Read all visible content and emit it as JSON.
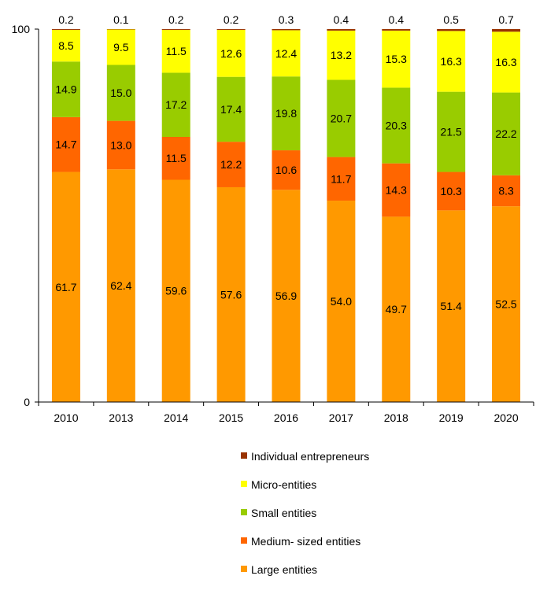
{
  "chart_data": {
    "type": "bar",
    "stacked": true,
    "categories": [
      "2010",
      "2013",
      "2014",
      "2015",
      "2016",
      "2017",
      "2018",
      "2019",
      "2020"
    ],
    "ylim": [
      0,
      100
    ],
    "y_ticks": [
      "0",
      "100"
    ],
    "grid": false,
    "legend_position": "bottom-center",
    "series": [
      {
        "name": "Large entities",
        "color": "#FF9900",
        "values": [
          61.7,
          62.4,
          59.6,
          57.6,
          56.9,
          54.0,
          49.7,
          51.4,
          52.5
        ],
        "labels": [
          "61.7",
          "62.4",
          "59.6",
          "57.6",
          "56.9",
          "54.0",
          "49.7",
          "51.4",
          "52.5"
        ]
      },
      {
        "name": "Medium- sized entities",
        "color": "#FF6600",
        "values": [
          14.7,
          13.0,
          11.5,
          12.2,
          10.6,
          11.7,
          14.3,
          10.3,
          8.3
        ],
        "labels": [
          "14.7",
          "13.0",
          "11.5",
          "12.2",
          "10.6",
          "11.7",
          "14.3",
          "10.3",
          "8.3"
        ]
      },
      {
        "name": "Small entities",
        "color": "#99CC00",
        "values": [
          14.9,
          15.0,
          17.2,
          17.4,
          19.8,
          20.7,
          20.3,
          21.5,
          22.2
        ],
        "labels": [
          "14.9",
          "15.0",
          "17.2",
          "17.4",
          "19.8",
          "20.7",
          "20.3",
          "21.5",
          "22.2"
        ]
      },
      {
        "name": "Micro-entities",
        "color": "#FFFF00",
        "values": [
          8.5,
          9.5,
          11.5,
          12.6,
          12.4,
          13.2,
          15.3,
          16.3,
          16.3
        ],
        "labels": [
          "8.5",
          "9.5",
          "11.5",
          "12.6",
          "12.4",
          "13.2",
          "15.3",
          "16.3",
          "16.3"
        ]
      },
      {
        "name": "Individual entrepreneurs",
        "color": "#993300",
        "values": [
          0.2,
          0.1,
          0.2,
          0.2,
          0.3,
          0.4,
          0.4,
          0.5,
          0.7
        ],
        "labels": [
          "0.2",
          "0.1",
          "0.2",
          "0.2",
          "0.3",
          "0.4",
          "0.4",
          "0.5",
          "0.7"
        ]
      }
    ],
    "legend_order": [
      "Individual entrepreneurs",
      "Micro-entities",
      "Small entities",
      "Medium- sized entities",
      "Large entities"
    ]
  }
}
